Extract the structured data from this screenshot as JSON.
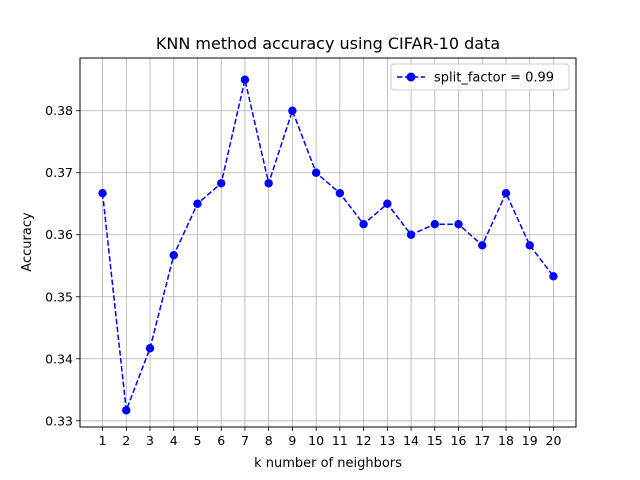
{
  "chart_data": {
    "type": "line",
    "title": "KNN method accuracy using CIFAR-10 data",
    "xlabel": "k number of neighbors",
    "ylabel": "Accuracy",
    "x": [
      1,
      2,
      3,
      4,
      5,
      6,
      7,
      8,
      9,
      10,
      11,
      12,
      13,
      14,
      15,
      16,
      17,
      18,
      19,
      20
    ],
    "x_ticks": [
      "1",
      "2",
      "3",
      "4",
      "5",
      "6",
      "7",
      "8",
      "9",
      "10",
      "11",
      "12",
      "13",
      "14",
      "15",
      "16",
      "17",
      "18",
      "19",
      "20"
    ],
    "y_ticks": [
      "0.33",
      "0.34",
      "0.35",
      "0.36",
      "0.37",
      "0.38"
    ],
    "y_tick_values": [
      0.33,
      0.34,
      0.35,
      0.36,
      0.37,
      0.38
    ],
    "xlim": [
      0.05,
      20.95
    ],
    "ylim": [
      0.329,
      0.3885
    ],
    "grid": true,
    "legend_position": "top-right",
    "series": [
      {
        "name": "split_factor = 0.99",
        "color": "#0000ff",
        "line_style": "dashed",
        "marker": "circle",
        "values": [
          0.3667,
          0.3317,
          0.3417,
          0.3567,
          0.365,
          0.3683,
          0.385,
          0.3683,
          0.38,
          0.37,
          0.3667,
          0.3617,
          0.365,
          0.36,
          0.3617,
          0.3617,
          0.3583,
          0.3667,
          0.3583,
          0.3533
        ]
      }
    ]
  }
}
